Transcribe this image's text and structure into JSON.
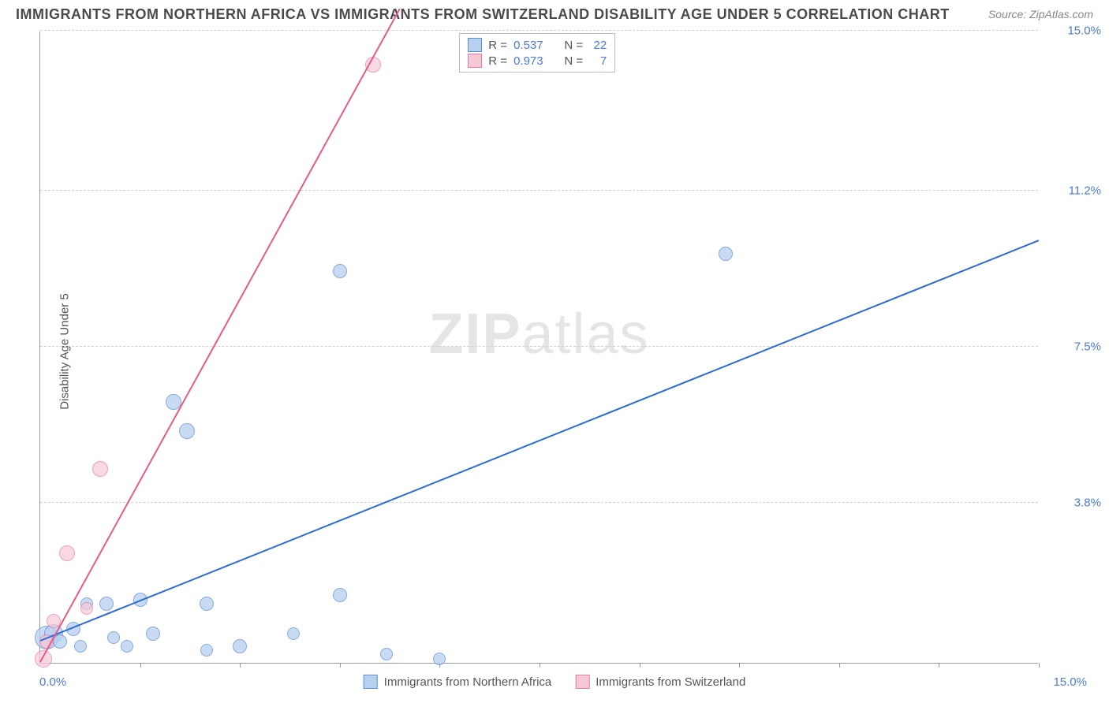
{
  "title": "IMMIGRANTS FROM NORTHERN AFRICA VS IMMIGRANTS FROM SWITZERLAND DISABILITY AGE UNDER 5 CORRELATION CHART",
  "source": "Source: ZipAtlas.com",
  "y_axis_label": "Disability Age Under 5",
  "watermark_bold": "ZIP",
  "watermark_light": "atlas",
  "chart": {
    "type": "scatter",
    "xlim": [
      0,
      15
    ],
    "ylim": [
      0,
      15
    ],
    "x_tick_min": "0.0%",
    "x_tick_max": "15.0%",
    "y_ticks": [
      {
        "value": 3.8,
        "label": "3.8%"
      },
      {
        "value": 7.5,
        "label": "7.5%"
      },
      {
        "value": 11.2,
        "label": "11.2%"
      },
      {
        "value": 15.0,
        "label": "15.0%"
      }
    ],
    "x_tick_positions": [
      0,
      1.5,
      3.0,
      4.5,
      6.0,
      7.5,
      9.0,
      10.5,
      12.0,
      13.5,
      15.0
    ],
    "grid_color": "#d0d0d0",
    "background_color": "#ffffff",
    "series": [
      {
        "name": "Immigrants from Northern Africa",
        "r": "0.537",
        "n": "22",
        "point_fill": "#b8d0f0",
        "point_stroke": "#5a8fd6",
        "point_opacity": 0.75,
        "point_radius": 10,
        "line_color": "#2b6cd4",
        "line_width": 2,
        "line_start": {
          "x": 0.0,
          "y": 0.5
        },
        "line_end": {
          "x": 15.0,
          "y": 10.0
        },
        "points": [
          {
            "x": 0.1,
            "y": 0.6,
            "r": 15
          },
          {
            "x": 0.2,
            "y": 0.7,
            "r": 12
          },
          {
            "x": 0.3,
            "y": 0.5,
            "r": 9
          },
          {
            "x": 0.5,
            "y": 0.8,
            "r": 9
          },
          {
            "x": 0.6,
            "y": 0.4,
            "r": 8
          },
          {
            "x": 0.7,
            "y": 1.4,
            "r": 8
          },
          {
            "x": 1.0,
            "y": 1.4,
            "r": 9
          },
          {
            "x": 1.1,
            "y": 0.6,
            "r": 8
          },
          {
            "x": 1.3,
            "y": 0.4,
            "r": 8
          },
          {
            "x": 1.5,
            "y": 1.5,
            "r": 9
          },
          {
            "x": 1.7,
            "y": 0.7,
            "r": 9
          },
          {
            "x": 2.0,
            "y": 6.2,
            "r": 10
          },
          {
            "x": 2.2,
            "y": 5.5,
            "r": 10
          },
          {
            "x": 2.5,
            "y": 1.4,
            "r": 9
          },
          {
            "x": 2.5,
            "y": 0.3,
            "r": 8
          },
          {
            "x": 3.0,
            "y": 0.4,
            "r": 9
          },
          {
            "x": 3.8,
            "y": 0.7,
            "r": 8
          },
          {
            "x": 4.5,
            "y": 1.6,
            "r": 9
          },
          {
            "x": 4.5,
            "y": 9.3,
            "r": 9
          },
          {
            "x": 5.2,
            "y": 0.2,
            "r": 8
          },
          {
            "x": 6.0,
            "y": 0.1,
            "r": 8
          },
          {
            "x": 10.3,
            "y": 9.7,
            "r": 9
          }
        ]
      },
      {
        "name": "Immigrants from Switzerland",
        "r": "0.973",
        "n": "7",
        "point_fill": "#f6c8d6",
        "point_stroke": "#e87ba0",
        "point_opacity": 0.7,
        "point_radius": 10,
        "line_color": "#e85a8a",
        "line_width": 2,
        "line_start": {
          "x": 0.0,
          "y": 0.0
        },
        "line_end": {
          "x": 5.4,
          "y": 15.5
        },
        "points": [
          {
            "x": 0.05,
            "y": 0.1,
            "r": 11
          },
          {
            "x": 0.1,
            "y": 0.5,
            "r": 9
          },
          {
            "x": 0.2,
            "y": 1.0,
            "r": 9
          },
          {
            "x": 0.4,
            "y": 2.6,
            "r": 10
          },
          {
            "x": 0.7,
            "y": 1.3,
            "r": 8
          },
          {
            "x": 0.9,
            "y": 4.6,
            "r": 10
          },
          {
            "x": 5.0,
            "y": 14.2,
            "r": 10
          }
        ]
      }
    ],
    "legend_bottom": [
      {
        "swatch_fill": "#b8d0f0",
        "swatch_stroke": "#5a8fd6",
        "label": "Immigrants from Northern Africa"
      },
      {
        "swatch_fill": "#f6c8d6",
        "swatch_stroke": "#e87ba0",
        "label": "Immigrants from Switzerland"
      }
    ]
  }
}
